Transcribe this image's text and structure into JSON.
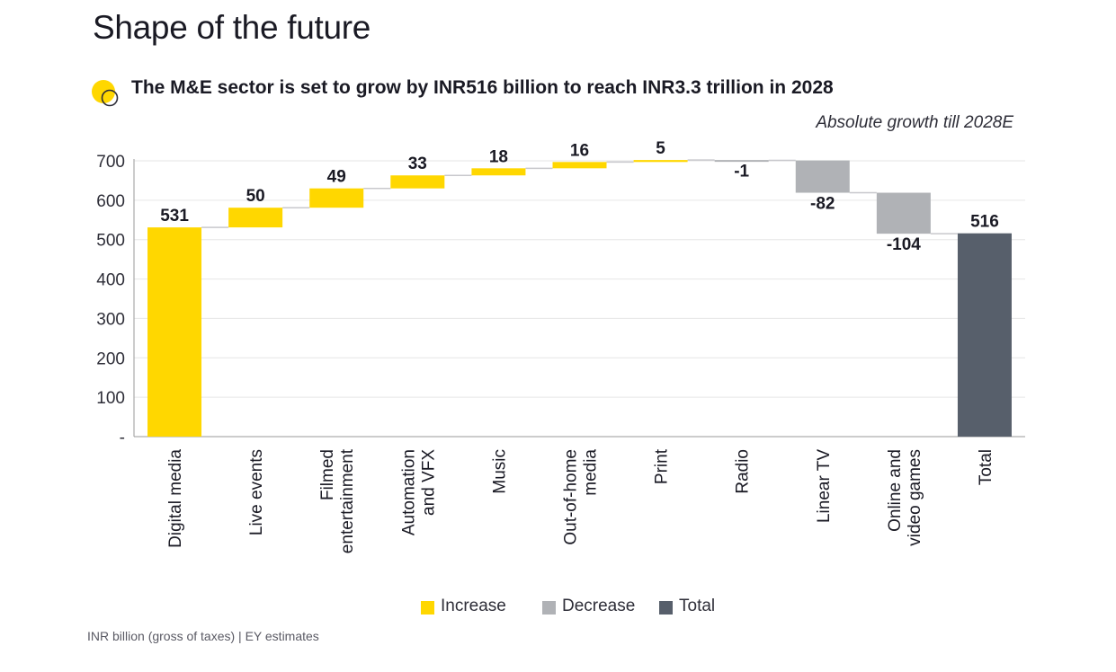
{
  "header": {
    "title": "Shape of the future",
    "subtitle": "The M&E sector is set to grow by INR516 billion to reach INR3.3 trillion in 2028",
    "annotation": "Absolute growth till 2028E"
  },
  "footer": {
    "source": "INR billion (gross of taxes) | EY estimates"
  },
  "colors": {
    "increase": "#FFD700",
    "decrease": "#B0B2B6",
    "total": "#575F6B",
    "grid": "#E6E6E6",
    "axis": "#9A9A9A",
    "text": "#1A1A24"
  },
  "chart_data": {
    "type": "waterfall",
    "title": "The M&E sector is set to grow by INR516 billion to reach INR3.3 trillion in 2028",
    "annotation": "Absolute growth till 2028E",
    "ylabel": "",
    "xlabel": "",
    "ylim": [
      0,
      700
    ],
    "yticks": [
      0,
      100,
      200,
      300,
      400,
      500,
      600,
      700
    ],
    "ytick_labels": [
      "-",
      "100",
      "200",
      "300",
      "400",
      "500",
      "600",
      "700"
    ],
    "grid": true,
    "legend": [
      {
        "key": "increase",
        "label": "Increase"
      },
      {
        "key": "decrease",
        "label": "Decrease"
      },
      {
        "key": "total",
        "label": "Total"
      }
    ],
    "legend_position": "bottom-center",
    "categories": [
      {
        "lines": [
          "Digital media"
        ],
        "value": 531,
        "kind": "increase",
        "label": "531"
      },
      {
        "lines": [
          "Live events"
        ],
        "value": 50,
        "kind": "increase",
        "label": "50"
      },
      {
        "lines": [
          "Filmed",
          "entertainment"
        ],
        "value": 49,
        "kind": "increase",
        "label": "49"
      },
      {
        "lines": [
          "Automation",
          "and VFX"
        ],
        "value": 33,
        "kind": "increase",
        "label": "33"
      },
      {
        "lines": [
          "Music"
        ],
        "value": 18,
        "kind": "increase",
        "label": "18"
      },
      {
        "lines": [
          "Out-of-home",
          "media"
        ],
        "value": 16,
        "kind": "increase",
        "label": "16"
      },
      {
        "lines": [
          "Print"
        ],
        "value": 5,
        "kind": "increase",
        "label": "5"
      },
      {
        "lines": [
          "Radio"
        ],
        "value": -1,
        "kind": "decrease",
        "label": "-1"
      },
      {
        "lines": [
          "Linear TV"
        ],
        "value": -82,
        "kind": "decrease",
        "label": "-82"
      },
      {
        "lines": [
          "Online and",
          "video games"
        ],
        "value": -104,
        "kind": "decrease",
        "label": "-104"
      },
      {
        "lines": [
          "Total"
        ],
        "value": 516,
        "kind": "total",
        "label": "516"
      }
    ]
  }
}
